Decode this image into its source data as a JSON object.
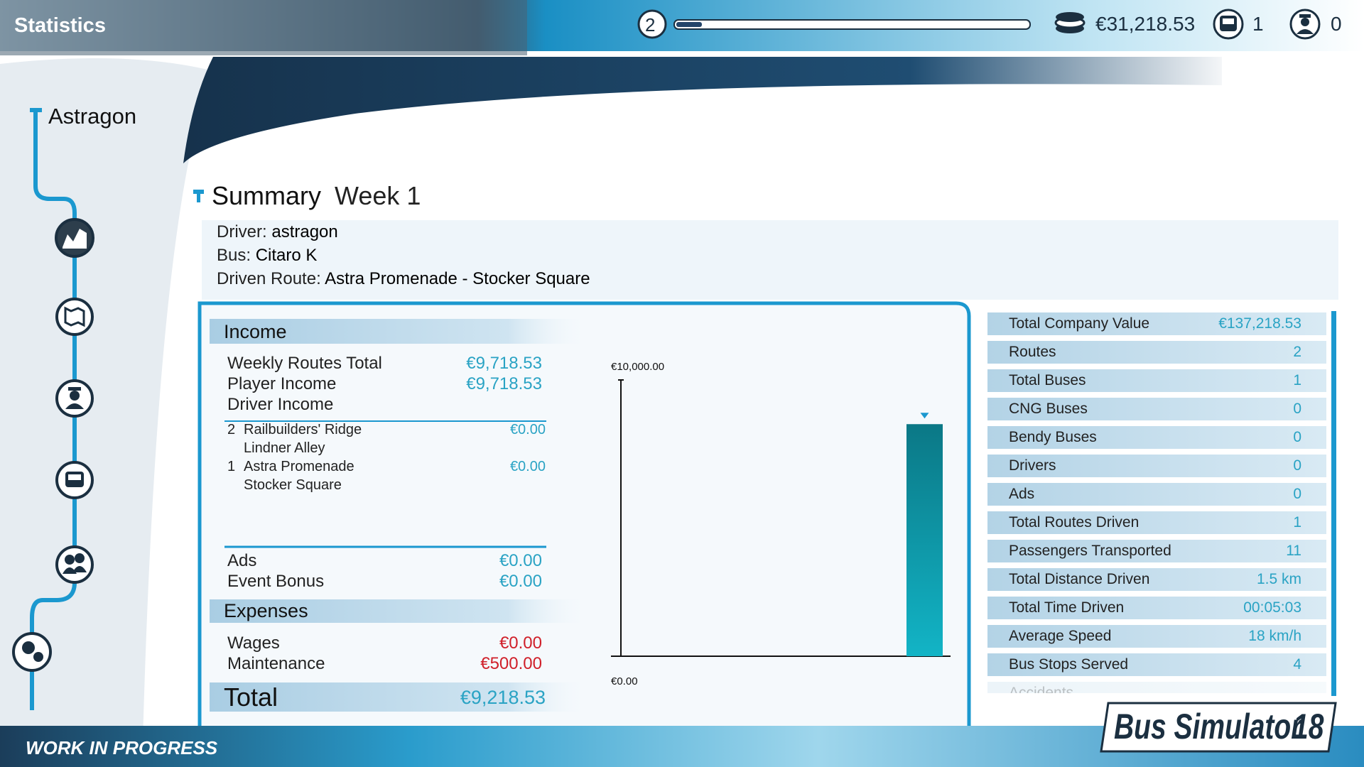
{
  "header": {
    "title": "Statistics",
    "level": "2",
    "money": "€31,218.53",
    "buses": "1",
    "drivers": "0"
  },
  "sidebar": {
    "company": "Astragon"
  },
  "summary": {
    "title": "Summary",
    "week": "Week 1",
    "driver_label": "Driver:",
    "driver": "astragon",
    "bus_label": "Bus:",
    "bus": "Citaro K",
    "route_label": "Driven Route:",
    "route": "Astra Promenade - Stocker Square"
  },
  "income": {
    "title": "Income",
    "rows": [
      {
        "label": "Weekly Routes Total",
        "value": "€9,718.53"
      },
      {
        "label": "Player Income",
        "value": "€9,718.53"
      },
      {
        "label": "Driver Income"
      }
    ],
    "routes": [
      {
        "number": "2",
        "from": "Railbuilders' Ridge",
        "to": "Lindner Alley",
        "value": "€0.00"
      },
      {
        "number": "1",
        "from": "Astra Promenade",
        "to": "Stocker Square",
        "value": "€0.00"
      }
    ],
    "other": [
      {
        "label": "Ads",
        "value": "€0.00"
      },
      {
        "label": "Event Bonus",
        "value": "€0.00"
      }
    ]
  },
  "expenses": {
    "title": "Expenses",
    "rows": [
      {
        "label": "Wages",
        "value": "€0.00"
      },
      {
        "label": "Maintenance",
        "value": "€500.00"
      }
    ]
  },
  "total": {
    "label": "Total",
    "value": "€9,218.53"
  },
  "chart_data": {
    "type": "bar",
    "values": [
      8400
    ],
    "color": "#0b8797",
    "ylim": [
      0,
      10000
    ],
    "yticks": [
      {
        "value": 0,
        "label": "€0.00"
      },
      {
        "value": 10000,
        "label": "€10,000.00"
      }
    ]
  },
  "stats": {
    "rows": [
      {
        "label": "Total Company Value",
        "value": "€137,218.53"
      },
      {
        "label": "Routes",
        "value": "2"
      },
      {
        "label": "Total Buses",
        "value": "1"
      },
      {
        "label": "CNG Buses",
        "value": "0"
      },
      {
        "label": "Bendy Buses",
        "value": "0"
      },
      {
        "label": "Drivers",
        "value": "0"
      },
      {
        "label": "Ads",
        "value": "0"
      },
      {
        "label": "Total Routes Driven",
        "value": "1"
      },
      {
        "label": "Passengers Transported",
        "value": "11"
      },
      {
        "label": "Total Distance Driven",
        "value": "1.5 km"
      },
      {
        "label": "Total Time Driven",
        "value": "00:05:03"
      },
      {
        "label": "Average Speed",
        "value": "18 km/h"
      },
      {
        "label": "Bus Stops Served",
        "value": "4"
      },
      {
        "label": "Accidents"
      }
    ]
  },
  "footer": {
    "status": "WORK IN PROGRESS",
    "logo": "Bus Simulator",
    "logo_number": "18"
  }
}
